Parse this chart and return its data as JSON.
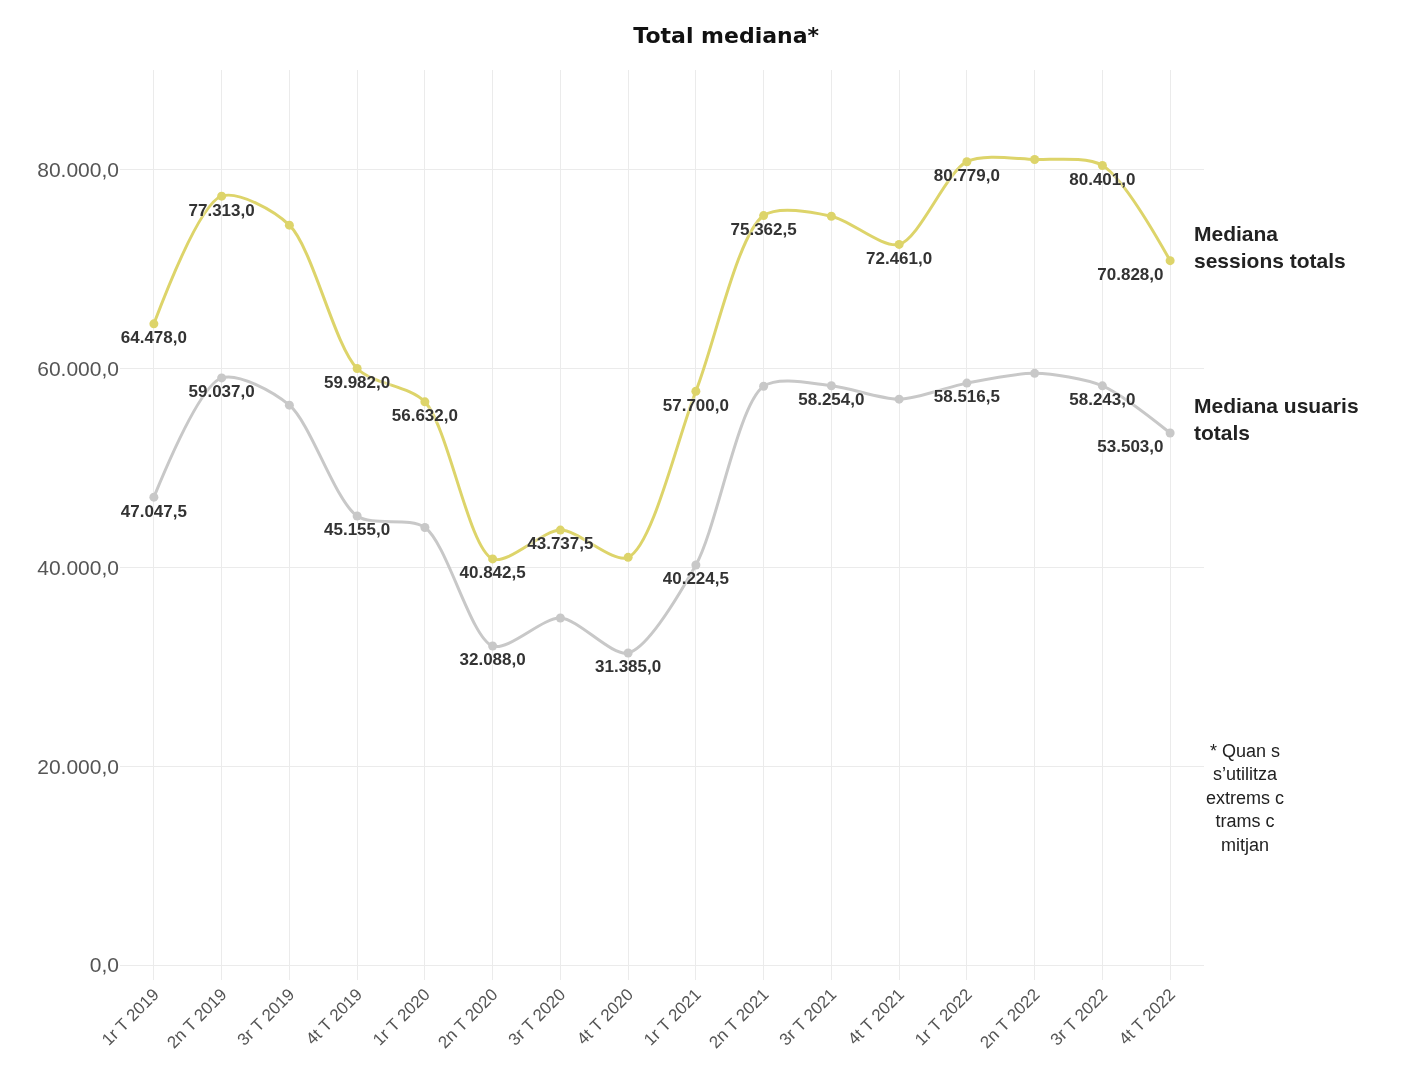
{
  "chart_data": {
    "type": "line",
    "title": "Total mediana*",
    "categories": [
      "1r T 2019",
      "2n T 2019",
      "3r T 2019",
      "4t T 2019",
      "1r T 2020",
      "2n T 2020",
      "3r T 2020",
      "4t T 2020",
      "1r T 2021",
      "2n T 2021",
      "3r T 2021",
      "4t T 2021",
      "1r T 2022",
      "2n T 2022",
      "3r T 2022",
      "4t T 2022"
    ],
    "series": [
      {
        "name": "Mediana sessions totals",
        "color": "#ddd46a",
        "values": [
          64478,
          77313,
          74400,
          59982,
          56632,
          40842.5,
          43737.5,
          41000,
          57700,
          75362.5,
          75300,
          72461,
          80779,
          81000,
          80401,
          70828
        ],
        "value_labels": [
          "64.478,0",
          "77.313,0",
          null,
          "59.982,0",
          "56.632,0",
          "40.842,5",
          "43.737,5",
          null,
          "57.700,0",
          "75.362,5",
          null,
          "72.461,0",
          "80.779,0",
          null,
          "80.401,0",
          "70.828,0"
        ]
      },
      {
        "name": "Mediana usuaris totals",
        "color": "#c8c8c8",
        "values": [
          47047.5,
          59037,
          56300,
          45155,
          44000,
          32088,
          34900,
          31385,
          40224.5,
          58200,
          58254,
          56900,
          58516.5,
          59500,
          58243,
          53503
        ],
        "value_labels": [
          "47.047,5",
          "59.037,0",
          null,
          "45.155,0",
          null,
          "32.088,0",
          null,
          "31.385,0",
          "40.224,5",
          null,
          "58.254,0",
          null,
          "58.516,5",
          null,
          "58.243,0",
          "53.503,0"
        ]
      }
    ],
    "ylim": [
      -1500,
      90000
    ],
    "yticks": [
      {
        "value": 0,
        "label": "0,0"
      },
      {
        "value": 20000,
        "label": "20.000,0"
      },
      {
        "value": 40000,
        "label": "40.000,0"
      },
      {
        "value": 60000,
        "label": "60.000,0"
      },
      {
        "value": 80000,
        "label": "80.000,0"
      }
    ],
    "grid": true,
    "legend": false,
    "marker": "circle",
    "line_style": "solid",
    "annotations": [
      "* Quan s\ns’utilitza\nextrems c\ntrams c\nmitjan"
    ]
  }
}
